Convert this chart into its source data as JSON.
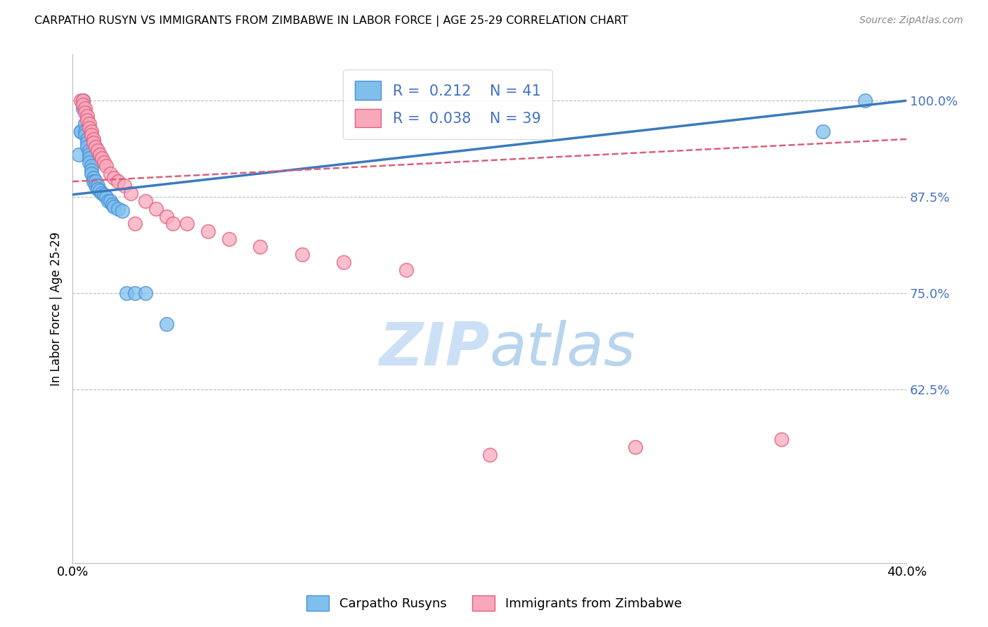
{
  "title": "CARPATHO RUSYN VS IMMIGRANTS FROM ZIMBABWE IN LABOR FORCE | AGE 25-29 CORRELATION CHART",
  "source": "Source: ZipAtlas.com",
  "ylabel": "In Labor Force | Age 25-29",
  "xlim": [
    0.0,
    0.4
  ],
  "ylim": [
    0.4,
    1.06
  ],
  "ytick_positions": [
    0.625,
    0.75,
    0.875,
    1.0
  ],
  "ytick_labels": [
    "62.5%",
    "75.0%",
    "87.5%",
    "100.0%"
  ],
  "xtick_positions": [
    0.0,
    0.05,
    0.1,
    0.15,
    0.2,
    0.25,
    0.3,
    0.35,
    0.4
  ],
  "xtick_labels": [
    "0.0%",
    "",
    "",
    "",
    "",
    "",
    "",
    "",
    "40.0%"
  ],
  "blue_R": "0.212",
  "blue_N": "41",
  "pink_R": "0.038",
  "pink_N": "39",
  "blue_scatter_color": "#7fbfec",
  "blue_edge_color": "#4a90d9",
  "pink_scatter_color": "#f9a8bb",
  "pink_edge_color": "#e06080",
  "blue_line_color": "#3a7abf",
  "pink_line_color": "#d9607a",
  "tick_label_color": "#4472c4",
  "watermark_color": "#cce0f5",
  "blue_scatter_x": [
    0.003,
    0.004,
    0.004,
    0.005,
    0.005,
    0.005,
    0.006,
    0.006,
    0.006,
    0.007,
    0.007,
    0.007,
    0.008,
    0.008,
    0.008,
    0.008,
    0.009,
    0.009,
    0.009,
    0.01,
    0.01,
    0.011,
    0.011,
    0.012,
    0.012,
    0.013,
    0.014,
    0.015,
    0.016,
    0.017,
    0.018,
    0.019,
    0.02,
    0.022,
    0.024,
    0.026,
    0.03,
    0.035,
    0.045,
    0.36,
    0.38
  ],
  "blue_scatter_y": [
    0.93,
    0.96,
    0.96,
    1.0,
    1.0,
    0.99,
    0.97,
    0.96,
    0.955,
    0.95,
    0.945,
    0.94,
    0.935,
    0.93,
    0.925,
    0.92,
    0.915,
    0.91,
    0.905,
    0.9,
    0.895,
    0.895,
    0.89,
    0.89,
    0.885,
    0.883,
    0.88,
    0.878,
    0.875,
    0.87,
    0.87,
    0.865,
    0.862,
    0.86,
    0.857,
    0.75,
    0.75,
    0.75,
    0.71,
    0.96,
    1.0
  ],
  "pink_scatter_x": [
    0.004,
    0.005,
    0.005,
    0.006,
    0.006,
    0.007,
    0.007,
    0.008,
    0.008,
    0.009,
    0.009,
    0.01,
    0.01,
    0.011,
    0.012,
    0.013,
    0.014,
    0.015,
    0.016,
    0.018,
    0.02,
    0.022,
    0.025,
    0.028,
    0.035,
    0.04,
    0.045,
    0.055,
    0.065,
    0.075,
    0.09,
    0.11,
    0.13,
    0.16,
    0.2,
    0.27,
    0.34,
    0.03,
    0.048
  ],
  "pink_scatter_y": [
    1.0,
    1.0,
    0.995,
    0.99,
    0.985,
    0.98,
    0.975,
    0.97,
    0.965,
    0.96,
    0.955,
    0.95,
    0.945,
    0.94,
    0.935,
    0.93,
    0.925,
    0.92,
    0.915,
    0.905,
    0.9,
    0.895,
    0.89,
    0.88,
    0.87,
    0.86,
    0.85,
    0.84,
    0.83,
    0.82,
    0.81,
    0.8,
    0.79,
    0.78,
    0.54,
    0.55,
    0.56,
    0.84,
    0.84
  ]
}
